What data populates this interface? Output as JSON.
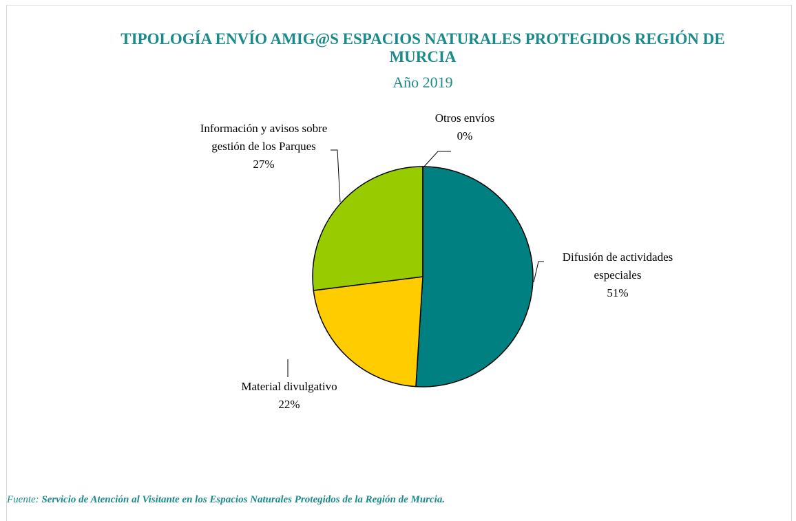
{
  "chart_data": {
    "type": "pie",
    "title": "TIPOLOGÍA ENVÍO AMIG@S ESPACIOS NATURALES PROTEGIDOS REGIÓN DE MURCIA",
    "subtitle": "Año 2019",
    "categories": [
      "Difusión de actividades especiales",
      "Material divulgativo",
      "Información y avisos sobre gestión de los Parques",
      "Otros envíos"
    ],
    "values": [
      51,
      22,
      27,
      0
    ],
    "value_labels": [
      "51%",
      "22%",
      "27%",
      "0%"
    ],
    "colors": [
      "#008080",
      "#ffcc00",
      "#99cc00",
      "#c0c0c0"
    ],
    "source_label": "Fuente:",
    "source": "Servicio de Atención al Visitante en los Espacios Naturales Protegidos de la Región de Murcia."
  }
}
